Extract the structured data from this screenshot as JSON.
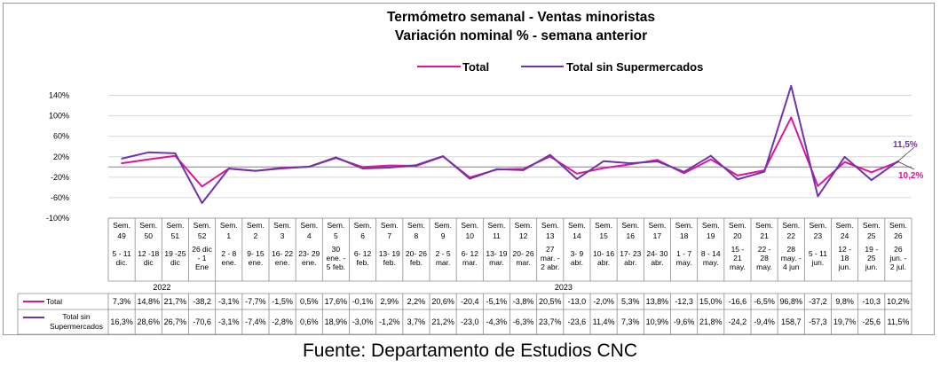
{
  "chart_data": {
    "type": "line",
    "title": "Termómetro semanal - Ventas minoristas",
    "subtitle": "Variación nominal % - semana anterior",
    "yticks": [
      "140%",
      "100%",
      "60%",
      "20%",
      "-20%",
      "-60%",
      "-100%"
    ],
    "ytick_values": [
      140,
      100,
      60,
      20,
      -20,
      -60,
      -100
    ],
    "ylim": [
      -100,
      160
    ],
    "grid": true,
    "legend_position": "top",
    "categories": [
      {
        "week": "Sem. 49",
        "dates": "5 - 11 dic."
      },
      {
        "week": "Sem. 50",
        "dates": "12 -18 dic"
      },
      {
        "week": "Sem. 51",
        "dates": "19 -25 dic"
      },
      {
        "week": "Sem. 52",
        "dates": "26 dic - 1 Ene"
      },
      {
        "week": "Sem. 1",
        "dates": "2 - 8 ene."
      },
      {
        "week": "Sem. 2",
        "dates": "9- 15 ene."
      },
      {
        "week": "Sem. 3",
        "dates": "16- 22 ene."
      },
      {
        "week": "Sem. 4",
        "dates": "23- 29 ene."
      },
      {
        "week": "Sem. 5",
        "dates": "30 ene. - 5 feb."
      },
      {
        "week": "Sem. 6",
        "dates": "6- 12 feb."
      },
      {
        "week": "Sem. 7",
        "dates": "13- 19 feb."
      },
      {
        "week": "Sem. 8",
        "dates": "20- 26 feb."
      },
      {
        "week": "Sem. 9",
        "dates": "2 - 5 mar."
      },
      {
        "week": "Sem. 10",
        "dates": "6- 12 mar."
      },
      {
        "week": "Sem. 11",
        "dates": "13- 19 mar."
      },
      {
        "week": "Sem. 12",
        "dates": "20- 26 mar."
      },
      {
        "week": "Sem. 13",
        "dates": "27 mar. - 2 abr."
      },
      {
        "week": "Sem. 14",
        "dates": "3- 9 abr."
      },
      {
        "week": "Sem. 15",
        "dates": "10- 16 abr."
      },
      {
        "week": "Sem. 16",
        "dates": "17- 23 abr."
      },
      {
        "week": "Sem. 17",
        "dates": "24- 30 abr."
      },
      {
        "week": "Sem. 18",
        "dates": "1 - 7 may."
      },
      {
        "week": "Sem. 19",
        "dates": "8 - 14 may."
      },
      {
        "week": "Sem. 20",
        "dates": "15 - 21 may."
      },
      {
        "week": "Sem. 21",
        "dates": "22 - 28 may."
      },
      {
        "week": "Sem. 22",
        "dates": "28 may. - 4 jun"
      },
      {
        "week": "Sem. 23",
        "dates": "5 - 11 jun."
      },
      {
        "week": "Sem. 24",
        "dates": "12 - 18 jun."
      },
      {
        "week": "Sem. 25",
        "dates": "19 - 25 jun."
      },
      {
        "week": "Sem. 26",
        "dates": "26 jun. - 2 jul."
      }
    ],
    "years": [
      {
        "label": "2022",
        "from": 0,
        "to": 3
      },
      {
        "label": "2023",
        "from": 4,
        "to": 29
      }
    ],
    "series": [
      {
        "name": "Total",
        "color": "#e0149a",
        "values": [
          7.3,
          14.8,
          21.7,
          -38.2,
          -3.1,
          -7.7,
          -1.5,
          0.5,
          17.6,
          -0.1,
          2.9,
          2.2,
          20.6,
          -20.4,
          -5.1,
          -3.8,
          20.5,
          -13.0,
          -2.0,
          5.3,
          13.8,
          -12.3,
          15.0,
          -16.6,
          -6.5,
          96.8,
          -37.2,
          9.8,
          -10.3,
          10.2
        ],
        "labels": [
          "7,3%",
          "14,8%",
          "21,7%",
          "-38,2",
          "-3,1%",
          "-7,7%",
          "-1,5%",
          "0,5%",
          "17,6%",
          "-0,1%",
          "2,9%",
          "2,2%",
          "20,6%",
          "-20,4",
          "-5,1%",
          "-3,8%",
          "20,5%",
          "-13,0",
          "-2,0%",
          "5,3%",
          "13,8%",
          "-12,3",
          "15,0%",
          "-16,6",
          "-6,5%",
          "96,8%",
          "-37,2",
          "9,8%",
          "-10,3",
          "10,2%"
        ],
        "end_label": "10,2%"
      },
      {
        "name": "Total sin Supermercados",
        "table_name": "Total sin Supermercados",
        "color": "#6e35a8",
        "values": [
          16.3,
          28.6,
          26.7,
          -70.6,
          -3.1,
          -7.4,
          -2.8,
          0.6,
          18.9,
          -3.0,
          -1.2,
          3.7,
          21.2,
          -23.0,
          -4.3,
          -6.3,
          23.7,
          -23.6,
          11.4,
          7.3,
          10.9,
          -9.6,
          21.8,
          -24.2,
          -9.4,
          158.7,
          -57.3,
          19.7,
          -25.6,
          11.5
        ],
        "labels": [
          "16,3%",
          "28,6%",
          "26,7%",
          "-70,6",
          "-3,1%",
          "-7,4%",
          "-2,8%",
          "0,6%",
          "18,9%",
          "-3,0%",
          "-1,2%",
          "3,7%",
          "21,2%",
          "-23,0",
          "-4,3%",
          "-6,3%",
          "23,7%",
          "-23,6",
          "11,4%",
          "7,3%",
          "10,9%",
          "-9,6%",
          "21,8%",
          "-24,2",
          "-9,4%",
          "158,7",
          "-57,3",
          "19,7%",
          "-25,6",
          "11,5%"
        ],
        "end_label": "11,5%"
      }
    ]
  },
  "source": "Fuente: Departamento de Estudios CNC"
}
